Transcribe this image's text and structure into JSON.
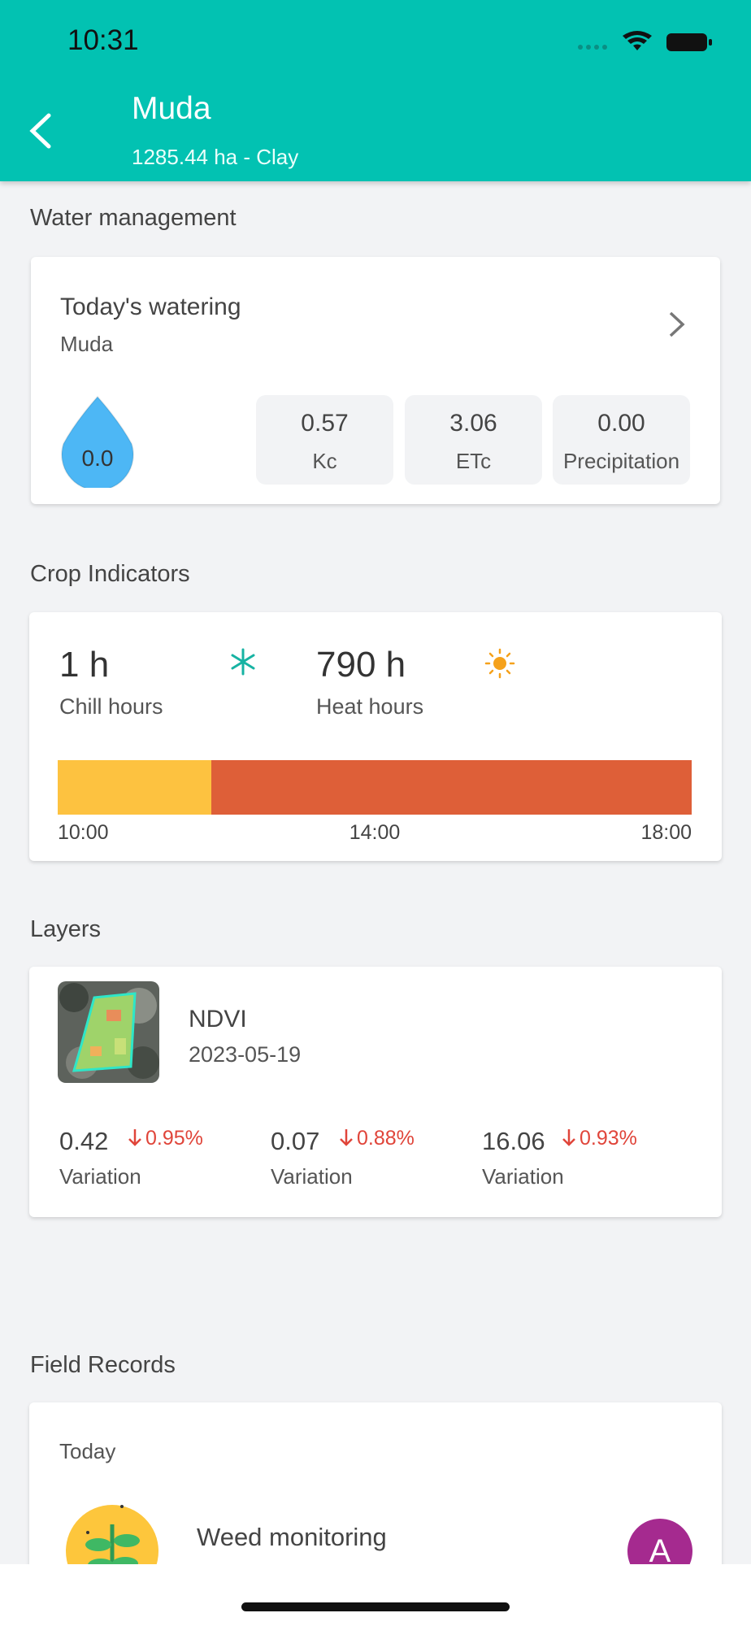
{
  "status_bar": {
    "time": "10:31"
  },
  "header": {
    "title": "Muda",
    "subtitle": "1285.44 ha - Clay"
  },
  "water": {
    "section": "Water management",
    "title": "Today's watering",
    "field": "Muda",
    "drop_value": "0.0",
    "metrics": [
      {
        "value": "0.57",
        "label": "Kc"
      },
      {
        "value": "3.06",
        "label": "ETc"
      },
      {
        "value": "0.00",
        "label": "Precipitation"
      }
    ]
  },
  "crop": {
    "section": "Crop Indicators",
    "chill_value": "1 h",
    "chill_label": "Chill hours",
    "heat_value": "790 h",
    "heat_label": "Heat hours",
    "times": [
      "10:00",
      "14:00",
      "18:00"
    ]
  },
  "layers": {
    "section": "Layers",
    "name": "NDVI",
    "date": "2023-05-19",
    "stats": [
      {
        "value": "0.42",
        "change": "0.95%",
        "label": "Variation"
      },
      {
        "value": "0.07",
        "change": "0.88%",
        "label": "Variation"
      },
      {
        "value": "16.06",
        "change": "0.93%",
        "label": "Variation"
      }
    ]
  },
  "records": {
    "section": "Field Records",
    "day": "Today",
    "title": "Weed monitoring",
    "avatar": "A"
  }
}
